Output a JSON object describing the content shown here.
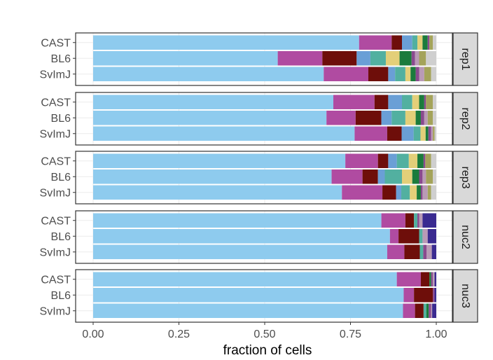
{
  "chart_data": {
    "type": "bar",
    "orientation": "horizontal",
    "stacked": true,
    "xlabel": "fraction of cells",
    "ylabel": "",
    "xlim": [
      0,
      1
    ],
    "x_ticks": [
      {
        "value": 0.0,
        "label": "0.00"
      },
      {
        "value": 0.25,
        "label": "0.25"
      },
      {
        "value": 0.5,
        "label": "0.50"
      },
      {
        "value": 0.75,
        "label": "0.75"
      },
      {
        "value": 1.0,
        "label": "1.00"
      }
    ],
    "legend": "none",
    "categories": [
      "CAST",
      "BL6",
      "SvImJ"
    ],
    "segment_colors": [
      "#8ecbee",
      "#b04ba1",
      "#6e0e0a",
      "#6a9fd6",
      "#52b0a0",
      "#e3cf79",
      "#1b7b3c",
      "#8a4a8e",
      "#b99ab6",
      "#a4a35a",
      "#cfcfcf"
    ],
    "panels": [
      {
        "name": "rep1",
        "bars": [
          {
            "category": "CAST",
            "values": [
              0.775,
              0.095,
              0.03,
              0.03,
              0.015,
              0.015,
              0.015,
              0.005,
              0.0,
              0.01,
              0.01
            ]
          },
          {
            "category": "BL6",
            "values": [
              0.538,
              0.13,
              0.1,
              0.04,
              0.045,
              0.04,
              0.035,
              0.01,
              0.012,
              0.02,
              0.03
            ]
          },
          {
            "category": "SvImJ",
            "values": [
              0.672,
              0.13,
              0.058,
              0.02,
              0.03,
              0.015,
              0.015,
              0.01,
              0.015,
              0.02,
              0.015
            ]
          }
        ]
      },
      {
        "name": "rep2",
        "bars": [
          {
            "category": "CAST",
            "values": [
              0.7,
              0.12,
              0.04,
              0.04,
              0.03,
              0.02,
              0.015,
              0.005,
              0.0,
              0.02,
              0.01
            ]
          },
          {
            "category": "BL6",
            "values": [
              0.68,
              0.085,
              0.075,
              0.03,
              0.04,
              0.03,
              0.015,
              0.01,
              0.01,
              0.015,
              0.01
            ]
          },
          {
            "category": "SvImJ",
            "values": [
              0.762,
              0.095,
              0.042,
              0.035,
              0.02,
              0.015,
              0.008,
              0.008,
              0.005,
              0.005,
              0.005
            ]
          }
        ]
      },
      {
        "name": "rep3",
        "bars": [
          {
            "category": "CAST",
            "values": [
              0.735,
              0.095,
              0.03,
              0.025,
              0.035,
              0.025,
              0.018,
              0.005,
              0.0,
              0.017,
              0.015
            ]
          },
          {
            "category": "BL6",
            "values": [
              0.695,
              0.09,
              0.045,
              0.02,
              0.05,
              0.03,
              0.02,
              0.01,
              0.01,
              0.02,
              0.01
            ]
          },
          {
            "category": "SvImJ",
            "values": [
              0.725,
              0.118,
              0.04,
              0.015,
              0.025,
              0.02,
              0.012,
              0.005,
              0.015,
              0.01,
              0.015
            ]
          }
        ]
      },
      {
        "name": "nuc2",
        "bars": [
          {
            "category": "CAST",
            "values": [
              0.84,
              0.07,
              0.025,
              0.0,
              0.01,
              0.0,
              0.0,
              0.005,
              0.01,
              0.0,
              0.0
            ],
            "end_color": "#3a2a90",
            "end_value": 0.04
          },
          {
            "category": "BL6",
            "values": [
              0.865,
              0.025,
              0.06,
              0.0,
              0.01,
              0.0,
              0.0,
              0.0,
              0.015,
              0.0,
              0.0
            ],
            "end_color": "#3a2a90",
            "end_value": 0.025
          },
          {
            "category": "SvImJ",
            "values": [
              0.857,
              0.05,
              0.045,
              0.0,
              0.01,
              0.0,
              0.0,
              0.01,
              0.015,
              0.0,
              0.0
            ],
            "end_color": "#3a2a90",
            "end_value": 0.013
          }
        ]
      },
      {
        "name": "nuc3",
        "bars": [
          {
            "category": "CAST",
            "values": [
              0.885,
              0.07,
              0.025,
              0.0,
              0.0,
              0.0,
              0.005,
              0.005,
              0.005,
              0.0,
              0.0
            ],
            "end_color": "#3a2a90",
            "end_value": 0.005
          },
          {
            "category": "BL6",
            "values": [
              0.905,
              0.03,
              0.055,
              0.0,
              0.0,
              0.0,
              0.0,
              0.005,
              0.0,
              0.0,
              0.0
            ],
            "end_color": "#3a2a90",
            "end_value": 0.005
          },
          {
            "category": "SvImJ",
            "values": [
              0.903,
              0.035,
              0.025,
              0.0,
              0.008,
              0.0,
              0.007,
              0.007,
              0.003,
              0.0,
              0.0
            ],
            "end_color": "#3a2a90",
            "end_value": 0.012
          }
        ]
      }
    ]
  },
  "style": {
    "panel_border": "#333333",
    "strip_fill": "#d9d9d9",
    "gridline": "#ebebeb",
    "tick_color": "#333333"
  }
}
